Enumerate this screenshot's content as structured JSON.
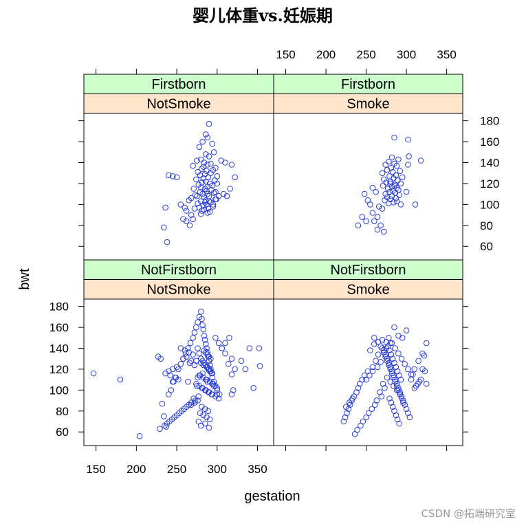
{
  "title": "婴儿体重vs.妊娠期",
  "watermark": "CSDN @拓端研究室",
  "colors": {
    "point": "#2a3fd6",
    "strip_outer": "#ccffcc",
    "strip_inner": "#ffe5cc"
  },
  "chart_data": {
    "type": "scatter",
    "xlabel": "gestation",
    "ylabel": "bwt",
    "xlim": [
      135,
      370
    ],
    "ylim": [
      47,
      187
    ],
    "x_ticks": [
      150,
      200,
      250,
      300,
      350
    ],
    "y_ticks": [
      60,
      80,
      100,
      120,
      140,
      160,
      180
    ],
    "grid": false,
    "panels": [
      {
        "strip_outer": "Firstborn",
        "strip_inner": "NotSmoke",
        "x": [
          290,
          286,
          288,
          282,
          294,
          278,
          296,
          286,
          290,
          280,
          275,
          284,
          292,
          288,
          270,
          283,
          298,
          281,
          295,
          287,
          276,
          292,
          285,
          279,
          300,
          289,
          283,
          274,
          297,
          286,
          281,
          291,
          277,
          294,
          288,
          280,
          271,
          285,
          293,
          287,
          279,
          296,
          282,
          288,
          273,
          290,
          284,
          268,
          299,
          286,
          280,
          292,
          276,
          287,
          283,
          295,
          278,
          289,
          284,
          281,
          291,
          305,
          310,
          318,
          322,
          300,
          298,
          308,
          312,
          316,
          240,
          245,
          250,
          255,
          265,
          260,
          272,
          268,
          258,
          262,
          266,
          270,
          285,
          290,
          295,
          288,
          298,
          302,
          236,
          234,
          238,
          262,
          275,
          280
        ],
        "y": [
          177,
          167,
          164,
          160,
          158,
          155,
          150,
          148,
          146,
          143,
          142,
          140,
          139,
          138,
          137,
          136,
          135,
          134,
          133,
          132,
          131,
          130,
          129,
          128,
          127,
          126,
          125,
          124,
          123,
          122,
          121,
          120,
          119,
          118,
          117,
          116,
          115,
          115,
          114,
          113,
          112,
          111,
          110,
          110,
          109,
          108,
          107,
          106,
          105,
          104,
          103,
          102,
          101,
          100,
          99,
          98,
          97,
          96,
          95,
          94,
          93,
          142,
          140,
          138,
          126,
          120,
          112,
          110,
          108,
          115,
          128,
          127,
          126,
          100,
          104,
          97,
          96,
          90,
          86,
          84,
          80,
          86,
          102,
          103,
          100,
          92,
          105,
          108,
          97,
          78,
          64,
          94,
          108,
          91
        ]
      },
      {
        "strip_outer": "Firstborn",
        "strip_inner": "Smoke",
        "x": [
          285,
          302,
          282,
          290,
          278,
          285,
          274,
          288,
          281,
          276,
          292,
          283,
          270,
          287,
          279,
          295,
          284,
          272,
          289,
          280,
          275,
          293,
          286,
          271,
          282,
          288,
          277,
          290,
          283,
          279,
          286,
          274,
          291,
          282,
          276,
          287,
          280,
          273,
          288,
          284,
          278,
          293,
          303,
          302,
          318,
          300,
          311,
          258,
          252,
          248,
          255,
          262,
          266,
          270,
          258,
          264,
          260,
          245,
          250,
          268,
          272,
          264,
          240,
          280,
          285
        ],
        "y": [
          164,
          162,
          145,
          143,
          141,
          139,
          138,
          137,
          135,
          133,
          132,
          131,
          130,
          128,
          127,
          126,
          125,
          124,
          123,
          122,
          121,
          120,
          119,
          118,
          117,
          116,
          115,
          114,
          113,
          112,
          111,
          110,
          109,
          108,
          107,
          106,
          105,
          104,
          103,
          102,
          101,
          100,
          146,
          138,
          142,
          112,
          100,
          116,
          104,
          110,
          100,
          112,
          98,
          96,
          92,
          88,
          84,
          88,
          84,
          80,
          74,
          76,
          80,
          120,
          118
        ]
      },
      {
        "strip_outer": "NotFirstborn",
        "strip_inner": "NotSmoke",
        "x": [
          147,
          180,
          204,
          227,
          229,
          232,
          234,
          237,
          240,
          243,
          246,
          249,
          252,
          255,
          258,
          261,
          264,
          267,
          270,
          272,
          274,
          276,
          278,
          280,
          281,
          282,
          283,
          284,
          285,
          286,
          287,
          288,
          289,
          290,
          291,
          292,
          293,
          294,
          296,
          298,
          300,
          303,
          306,
          310,
          315,
          318,
          322,
          330,
          340,
          352,
          353,
          276,
          278,
          280,
          282,
          284,
          286,
          288,
          290,
          292,
          294,
          279,
          283,
          287,
          291,
          295,
          275,
          281,
          285,
          289,
          293,
          277,
          271,
          273,
          268,
          265,
          262,
          259,
          256,
          253,
          250,
          247,
          244,
          241,
          238,
          235,
          298,
          302,
          306,
          310,
          314,
          318,
          284,
          286,
          288,
          290,
          292,
          274,
          280,
          283,
          287,
          289,
          291,
          282,
          278,
          276,
          286,
          288,
          294,
          296,
          300,
          255,
          260,
          265,
          270,
          262,
          258,
          268,
          266,
          272,
          250,
          245,
          240,
          236,
          242,
          248,
          252,
          264,
          274,
          278,
          282,
          286,
          290,
          294,
          298,
          302,
          276,
          272,
          268,
          281,
          285,
          289,
          279,
          283,
          287,
          291,
          277,
          285,
          280,
          290
        ],
        "y": [
          116,
          110,
          56,
          132,
          63,
          87,
          75,
          65,
          96,
          100,
          108,
          112,
          120,
          125,
          130,
          135,
          140,
          145,
          150,
          155,
          160,
          165,
          170,
          175,
          168,
          162,
          158,
          152,
          148,
          144,
          140,
          136,
          132,
          128,
          124,
          120,
          116,
          112,
          108,
          104,
          100,
          96,
          140,
          145,
          150,
          130,
          120,
          128,
          140,
          140,
          123,
          140,
          135,
          130,
          128,
          126,
          124,
          122,
          120,
          118,
          116,
          114,
          112,
          110,
          108,
          106,
          104,
          102,
          100,
          98,
          96,
          94,
          92,
          90,
          88,
          86,
          84,
          82,
          80,
          78,
          76,
          74,
          72,
          70,
          68,
          66,
          150,
          145,
          140,
          135,
          125,
          115,
          138,
          136,
          134,
          132,
          130,
          128,
          126,
          124,
          122,
          120,
          118,
          116,
          114,
          112,
          110,
          108,
          106,
          104,
          102,
          140,
          138,
          136,
          134,
          132,
          130,
          128,
          126,
          124,
          122,
          120,
          118,
          116,
          114,
          112,
          110,
          108,
          106,
          104,
          102,
          100,
          98,
          96,
          94,
          92,
          90,
          88,
          86,
          84,
          82,
          80,
          78,
          76,
          74,
          72,
          70,
          68,
          66,
          64
        ],
        "x_extra": [
          230,
          245,
          300,
          335,
          345,
          318,
          320
        ],
        "y_extra": [
          130,
          108,
          96,
          120,
          102,
          96,
          100
        ]
      },
      {
        "strip_outer": "NotFirstborn",
        "strip_inner": "Smoke",
        "x": [
          285,
          300,
          295,
          280,
          275,
          290,
          270,
          260,
          255,
          265,
          262,
          258,
          252,
          248,
          245,
          242,
          240,
          238,
          235,
          232,
          230,
          228,
          226,
          224,
          222,
          260,
          265,
          268,
          272,
          274,
          276,
          278,
          280,
          282,
          284,
          286,
          288,
          290,
          292,
          294,
          296,
          298,
          300,
          302,
          304,
          306,
          308,
          310,
          315,
          320,
          325,
          325,
          323,
          322,
          320,
          318,
          316,
          314,
          312,
          310,
          270,
          272,
          274,
          276,
          278,
          280,
          282,
          284,
          286,
          288,
          290,
          292,
          294,
          296,
          275,
          277,
          279,
          281,
          283,
          285,
          287,
          289,
          291,
          293,
          271,
          273,
          267,
          269,
          263,
          261,
          257,
          253,
          250,
          246,
          243,
          239,
          236,
          233,
          229,
          225,
          278,
          282,
          286,
          290,
          294,
          298,
          302,
          306,
          276,
          280,
          284,
          288,
          292,
          279,
          281,
          283,
          285,
          287,
          289,
          291,
          268,
          264,
          258,
          254,
          250
        ],
        "y": [
          160,
          157,
          150,
          145,
          140,
          152,
          148,
          144,
          138,
          134,
          128,
          122,
          118,
          114,
          110,
          106,
          102,
          98,
          94,
          90,
          86,
          82,
          78,
          74,
          70,
          150,
          146,
          142,
          138,
          134,
          130,
          126,
          122,
          118,
          114,
          110,
          106,
          102,
          98,
          94,
          90,
          86,
          82,
          78,
          74,
          110,
          115,
          120,
          128,
          135,
          145,
          106,
          118,
          133,
          120,
          110,
          108,
          106,
          104,
          102,
          140,
          136,
          132,
          128,
          124,
          120,
          116,
          112,
          108,
          104,
          100,
          96,
          92,
          88,
          146,
          142,
          138,
          134,
          130,
          126,
          122,
          118,
          114,
          110,
          106,
          102,
          98,
          94,
          90,
          86,
          82,
          78,
          74,
          70,
          66,
          62,
          58,
          92,
          88,
          84,
          150,
          145,
          140,
          135,
          130,
          125,
          120,
          115,
          112,
          108,
          104,
          100,
          96,
          92,
          88,
          84,
          80,
          76,
          72,
          68,
          127,
          122,
          118,
          114,
          110
        ]
      }
    ]
  }
}
